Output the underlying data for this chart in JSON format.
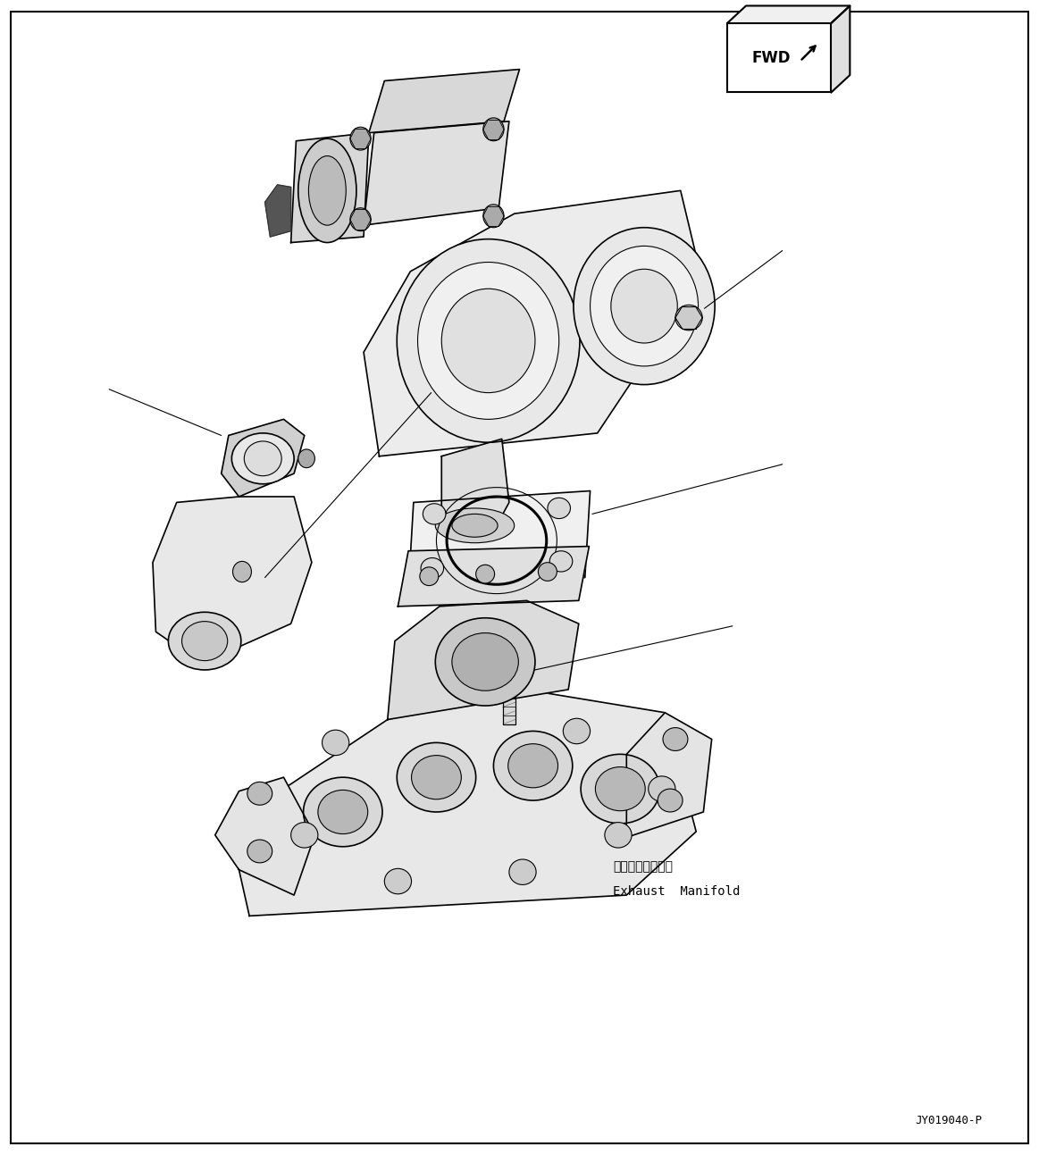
{
  "background_color": "#ffffff",
  "line_color": "#000000",
  "fig_width": 11.63,
  "fig_height": 12.93,
  "part_code": "JY019040-P",
  "exhaust_manifold_label_jp": "排気マニホールド",
  "exhaust_manifold_label_en": "Exhaust  Manifold",
  "fwd_text": "FWD"
}
